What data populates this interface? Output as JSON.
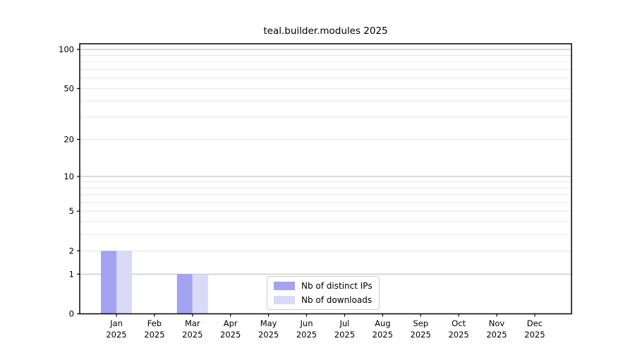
{
  "chart_data": {
    "type": "bar",
    "title": "teal.builder.modules 2025",
    "year_label": "2025",
    "categories": [
      "Jan",
      "Feb",
      "Mar",
      "Apr",
      "May",
      "Jun",
      "Jul",
      "Aug",
      "Sep",
      "Oct",
      "Nov",
      "Dec"
    ],
    "series": [
      {
        "name": "Nb of distinct IPs",
        "color": "#a3a3f2",
        "values": [
          2,
          0,
          1,
          0,
          0,
          0,
          0,
          0,
          0,
          0,
          0,
          0
        ]
      },
      {
        "name": "Nb of downloads",
        "color": "#d9d9f8",
        "values": [
          2,
          0,
          1,
          0,
          0,
          0,
          0,
          0,
          0,
          0,
          0,
          0
        ]
      }
    ],
    "y_scale": "log1p",
    "ylim": [
      0,
      110
    ],
    "y_ticks": [
      0,
      1,
      2,
      5,
      10,
      20,
      50,
      100
    ],
    "y_major_gridlines": [
      1,
      10,
      100
    ],
    "y_minor_gridlines": [
      2,
      3,
      4,
      5,
      6,
      7,
      8,
      9,
      20,
      30,
      40,
      50,
      60,
      70,
      80,
      90
    ],
    "grid": true,
    "legend_position": "bottom-center",
    "colors": {
      "spine": "#000000",
      "grid_major": "#b9b9b9",
      "grid_minor": "#e5e5e5",
      "tick_text": "#000000",
      "legend_border": "#cccccc",
      "background": "#ffffff"
    }
  }
}
